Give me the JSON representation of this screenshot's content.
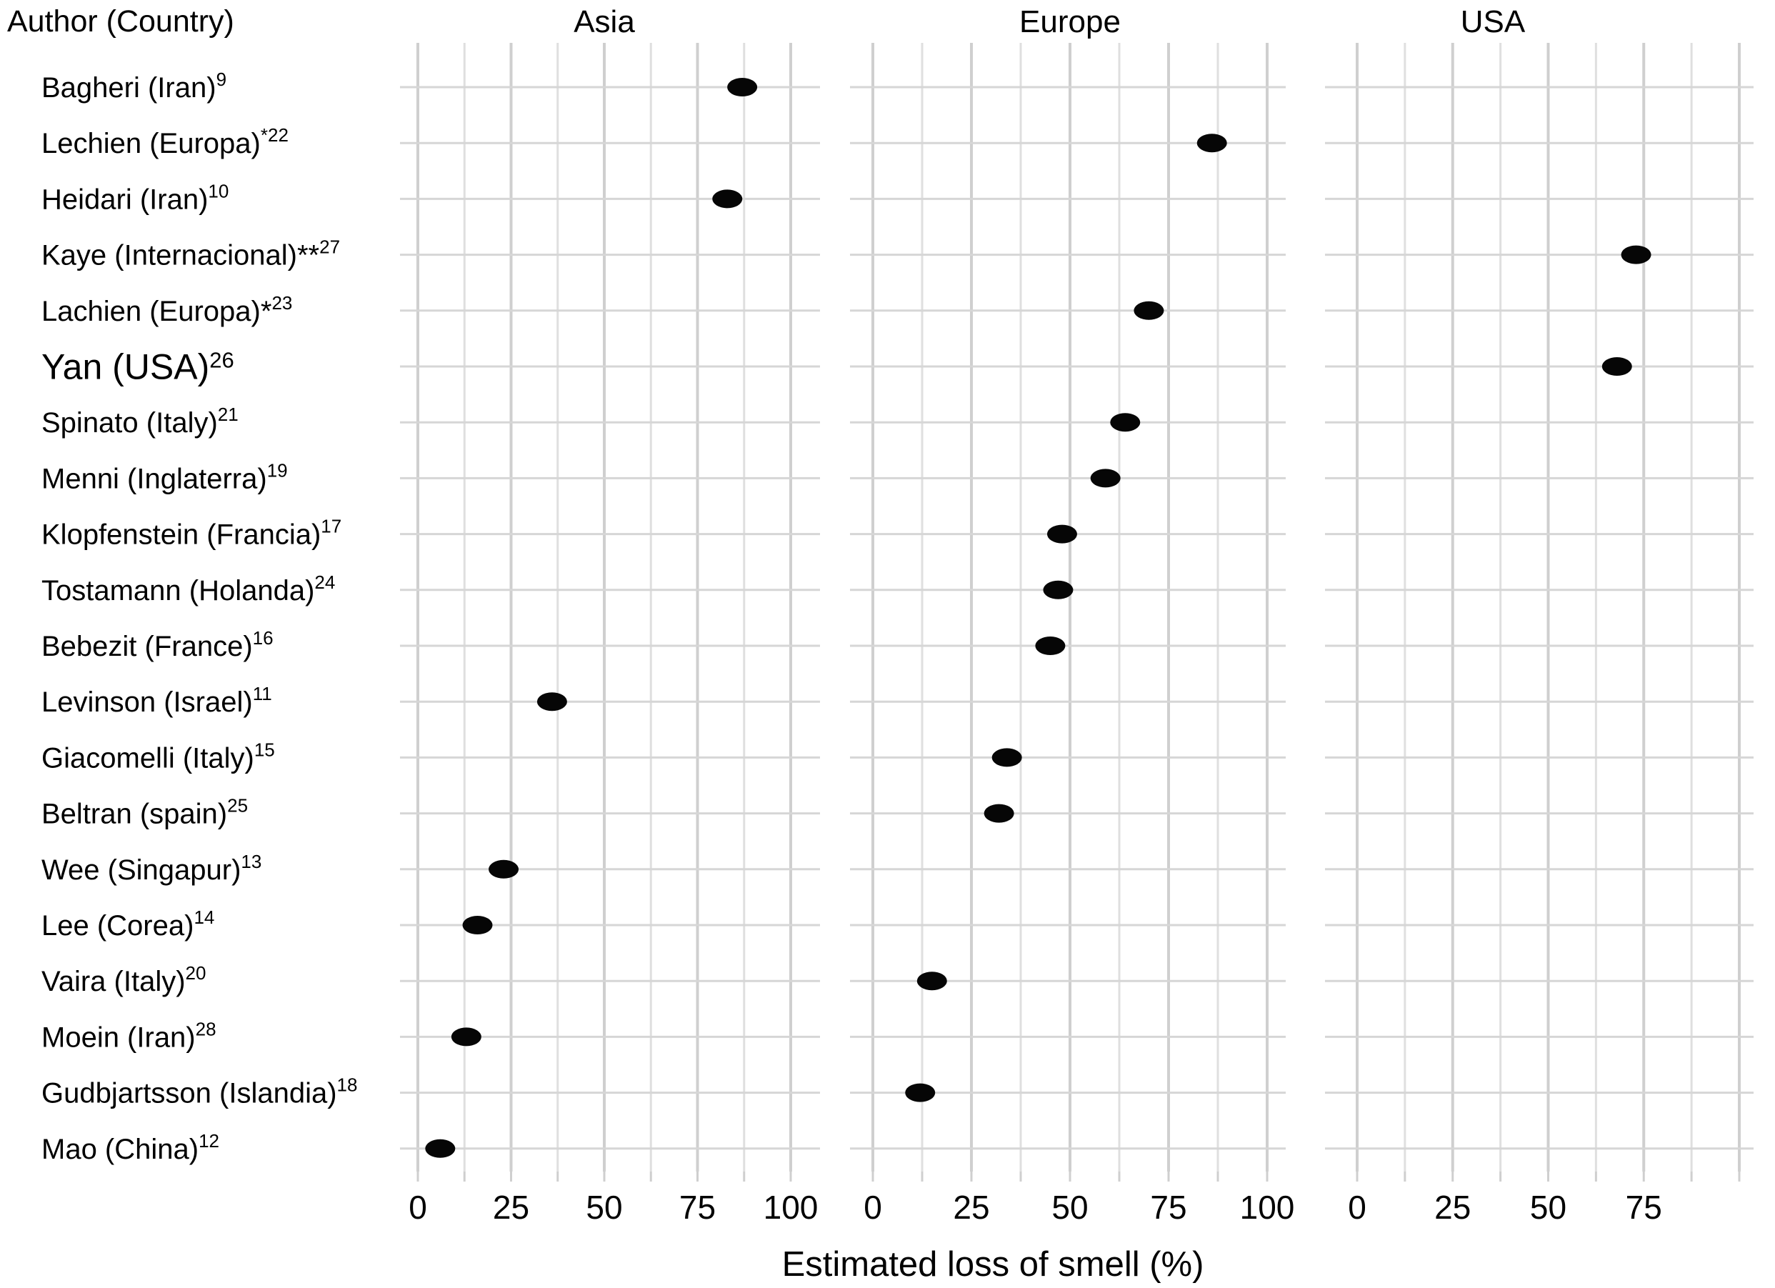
{
  "header": {
    "author_column_label": "Author (Country)",
    "facets": [
      "Asia",
      "Europe",
      "USA"
    ]
  },
  "chart_data": {
    "type": "scatter",
    "subtype": "faceted-dot-plot",
    "xlabel": "Estimated loss of smell (%)",
    "xlim": [
      0,
      100
    ],
    "grid": "on",
    "grid_minor_step": 12.5,
    "grid_major_step": 25,
    "x_ticks": {
      "Asia": [
        0,
        25,
        50,
        75,
        100
      ],
      "Europe": [
        0,
        25,
        50,
        75,
        100
      ],
      "USA": [
        0,
        25,
        50,
        75
      ]
    },
    "rows": [
      {
        "author": "Bagheri (Iran)",
        "marker": "",
        "sup": "9",
        "facet": "Asia",
        "value": 87,
        "large": false
      },
      {
        "author": "Lechien (Europa)",
        "marker": "",
        "sup": "*22",
        "facet": "Europe",
        "value": 86,
        "large": false
      },
      {
        "author": "Heidari (Iran)",
        "marker": "",
        "sup": "10",
        "facet": "Asia",
        "value": 83,
        "large": false
      },
      {
        "author": "Kaye (Internacional)",
        "marker": "**",
        "sup": "27",
        "facet": "USA",
        "value": 73,
        "large": false
      },
      {
        "author": "Lachien (Europa)",
        "marker": "*",
        "sup": "23",
        "facet": "Europe",
        "value": 70,
        "large": false
      },
      {
        "author": "Yan (USA)",
        "marker": "",
        "sup": "26",
        "facet": "USA",
        "value": 68,
        "large": true
      },
      {
        "author": "Spinato (Italy)",
        "marker": "",
        "sup": "21",
        "facet": "Europe",
        "value": 64,
        "large": false
      },
      {
        "author": "Menni (Inglaterra)",
        "marker": "",
        "sup": "19",
        "facet": "Europe",
        "value": 59,
        "large": false
      },
      {
        "author": "Klopfenstein (Francia)",
        "marker": "",
        "sup": "17",
        "facet": "Europe",
        "value": 48,
        "large": false
      },
      {
        "author": "Tostamann (Holanda)",
        "marker": "",
        "sup": "24",
        "facet": "Europe",
        "value": 47,
        "large": false
      },
      {
        "author": "Bebezit (France)",
        "marker": "",
        "sup": "16",
        "facet": "Europe",
        "value": 45,
        "large": false
      },
      {
        "author": "Levinson (Israel)",
        "marker": "",
        "sup": "11",
        "facet": "Asia",
        "value": 36,
        "large": false
      },
      {
        "author": "Giacomelli (Italy)",
        "marker": "",
        "sup": "15",
        "facet": "Europe",
        "value": 34,
        "large": false
      },
      {
        "author": "Beltran (spain)",
        "marker": "",
        "sup": "25",
        "facet": "Europe",
        "value": 32,
        "large": false
      },
      {
        "author": "Wee (Singapur)",
        "marker": "",
        "sup": "13",
        "facet": "Asia",
        "value": 23,
        "large": false
      },
      {
        "author": "Lee (Corea)",
        "marker": "",
        "sup": "14",
        "facet": "Asia",
        "value": 16,
        "large": false
      },
      {
        "author": "Vaira (Italy)",
        "marker": "",
        "sup": "20",
        "facet": "Europe",
        "value": 15,
        "large": false
      },
      {
        "author": "Moein (Iran)",
        "marker": "",
        "sup": "28",
        "facet": "Asia",
        "value": 13,
        "large": false
      },
      {
        "author": "Gudbjartsson (Islandia)",
        "marker": "",
        "sup": "18",
        "facet": "Europe",
        "value": 12,
        "large": false
      },
      {
        "author": "Mao (China)",
        "marker": "",
        "sup": "12",
        "facet": "Asia",
        "value": 6,
        "large": false
      }
    ]
  },
  "styles": {
    "background": "#ffffff",
    "text_color": "#000000",
    "dot_color": "#060606",
    "grid_major_color": "#cfcfcf",
    "grid_minor_color": "#dfdfdf",
    "grid_row_color": "#d6d6d6"
  }
}
